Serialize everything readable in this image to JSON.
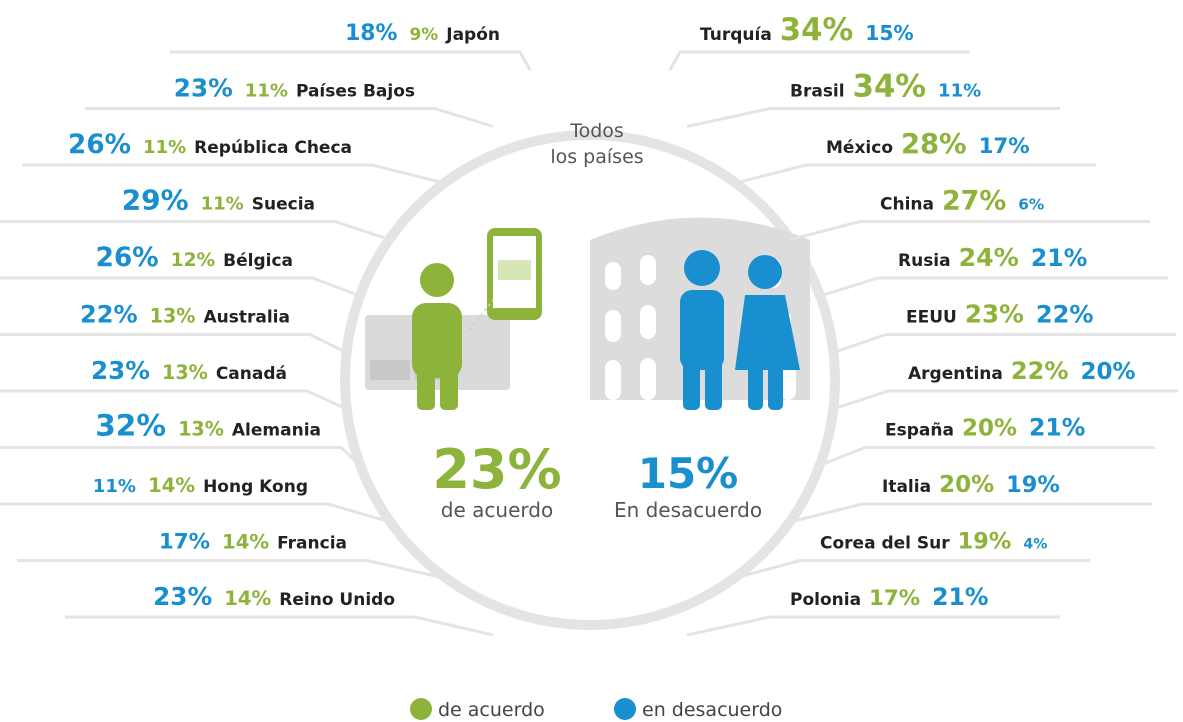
{
  "center": {
    "title_lines": [
      "Todos",
      "los países"
    ],
    "agree": "23%",
    "agree_label": "de acuerdo",
    "disagree": "15%",
    "disagree_label": "En desacuerdo"
  },
  "left": [
    {
      "disagree": "18%",
      "agree": "9%",
      "country": "Japón"
    },
    {
      "disagree": "23%",
      "agree": "11%",
      "country": "Países Bajos"
    },
    {
      "disagree": "26%",
      "agree": "11%",
      "country": "República Checa"
    },
    {
      "disagree": "29%",
      "agree": "11%",
      "country": "Suecia"
    },
    {
      "disagree": "26%",
      "agree": "12%",
      "country": "Bélgica"
    },
    {
      "disagree": "22%",
      "agree": "13%",
      "country": "Australia"
    },
    {
      "disagree": "23%",
      "agree": "13%",
      "country": "Canadá"
    },
    {
      "disagree": "32%",
      "agree": "13%",
      "country": "Alemania"
    },
    {
      "disagree": "11%",
      "agree": "14%",
      "country": "Hong Kong"
    },
    {
      "disagree": "17%",
      "agree": "14%",
      "country": "Francia"
    },
    {
      "disagree": "23%",
      "agree": "14%",
      "country": "Reino Unido"
    }
  ],
  "right": [
    {
      "country": "Turquía",
      "agree": "34%",
      "disagree": "15%"
    },
    {
      "country": "Brasil",
      "agree": "34%",
      "disagree": "11%"
    },
    {
      "country": "México",
      "agree": "28%",
      "disagree": "17%"
    },
    {
      "country": "China",
      "agree": "27%",
      "disagree": "6%"
    },
    {
      "country": "Rusia",
      "agree": "24%",
      "disagree": "21%"
    },
    {
      "country": "EEUU",
      "agree": "23%",
      "disagree": "22%"
    },
    {
      "country": "Argentina",
      "agree": "22%",
      "disagree": "20%"
    },
    {
      "country": "España",
      "agree": "20%",
      "disagree": "21%"
    },
    {
      "country": "Italia",
      "agree": "20%",
      "disagree": "19%"
    },
    {
      "country": "Corea del Sur",
      "agree": "19%",
      "disagree": "4%"
    },
    {
      "country": "Polonia",
      "agree": "17%",
      "disagree": "21%"
    }
  ],
  "legend": {
    "agree": "de acuerdo",
    "disagree": "en desacuerdo"
  }
}
